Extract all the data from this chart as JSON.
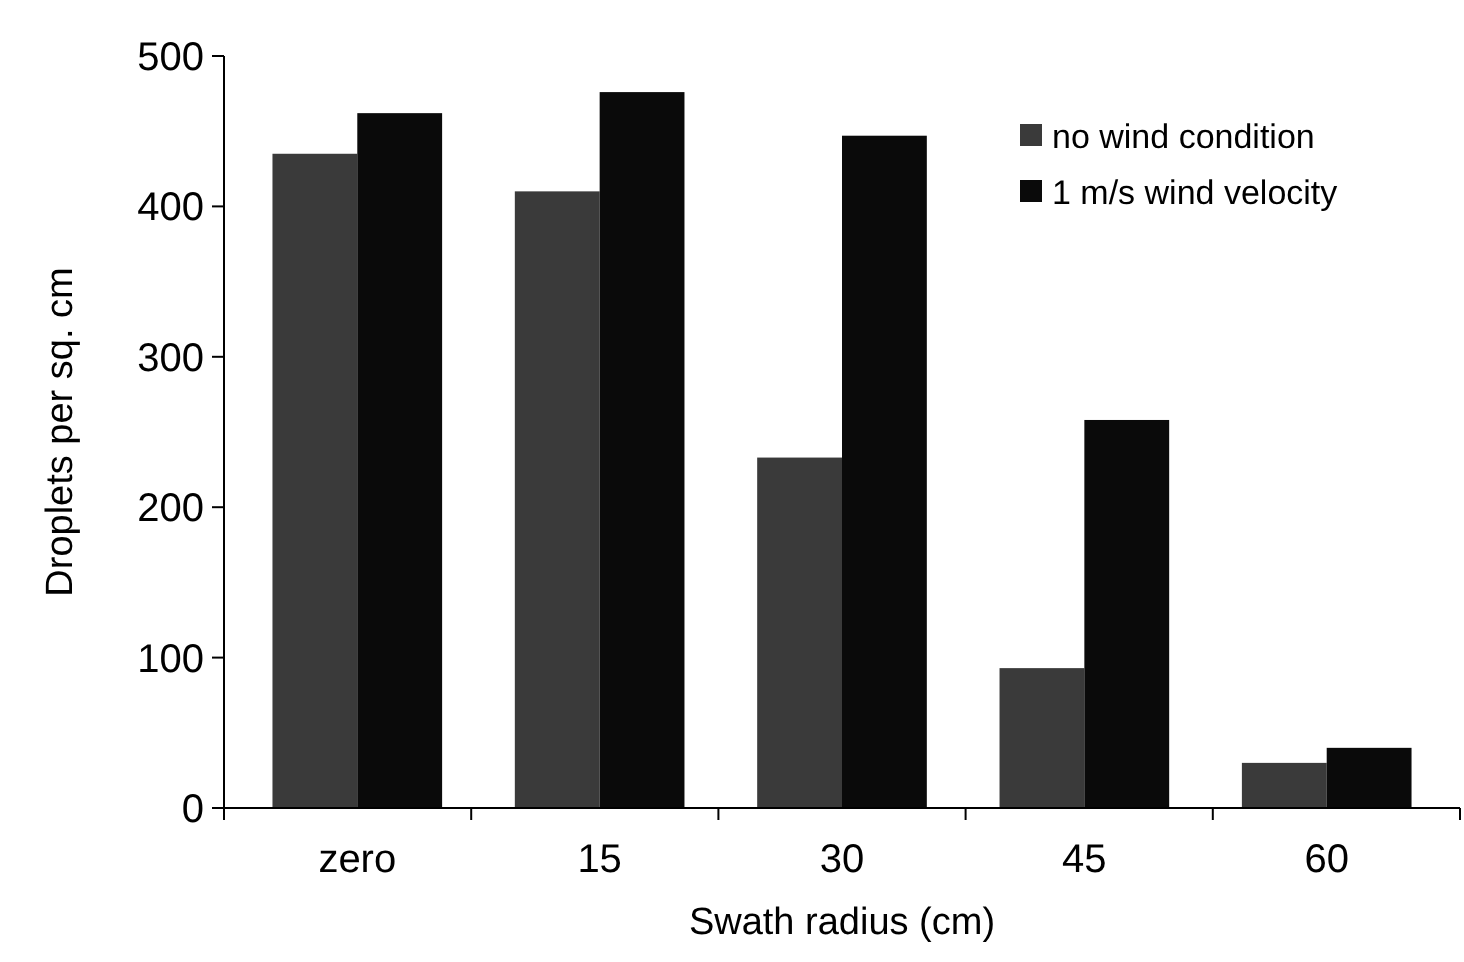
{
  "chart_data": {
    "type": "bar",
    "xlabel": "Swath radius (cm)",
    "ylabel": "Droplets per sq. cm",
    "categories": [
      "zero",
      "15",
      "30",
      "45",
      "60"
    ],
    "series": [
      {
        "name": "no wind condition",
        "color": "#3a3a3a",
        "values": [
          435,
          410,
          233,
          93,
          30
        ]
      },
      {
        "name": "1 m/s wind velocity",
        "color": "#0a0a0a",
        "values": [
          462,
          476,
          447,
          258,
          40
        ]
      }
    ],
    "ylim": [
      0,
      500
    ],
    "yticks": [
      0,
      100,
      200,
      300,
      400,
      500
    ],
    "grid": false,
    "legend": "top right"
  }
}
